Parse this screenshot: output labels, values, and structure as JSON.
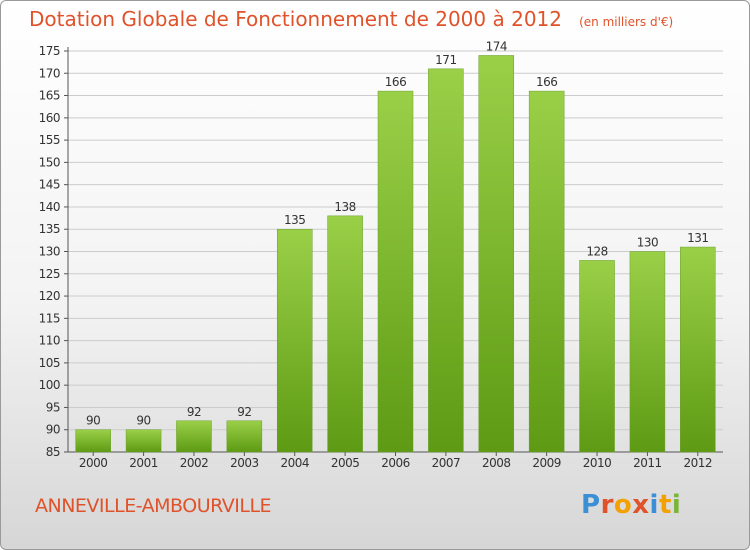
{
  "header": {
    "title": "Dotation Globale de Fonctionnement de 2000 à 2012",
    "unit": "(en milliers d'€)"
  },
  "footer": {
    "commune": "ANNEVILLE-AMBOURVILLE",
    "logo_letters": [
      "P",
      "r",
      "o",
      "x",
      "i",
      "t",
      "i"
    ],
    "logo_colors": [
      "#3a8fd6",
      "#e0522a",
      "#f2a100",
      "#e0522a",
      "#3a8fd6",
      "#f2a100",
      "#7ab53a"
    ]
  },
  "colors": {
    "bar_top": "#9ad048",
    "bar_bottom": "#5e9a14",
    "grid": "#cccccc",
    "text": "#333333",
    "accent": "#e0522a"
  },
  "chart_data": {
    "type": "bar",
    "categories": [
      "2000",
      "2001",
      "2002",
      "2003",
      "2004",
      "2005",
      "2006",
      "2007",
      "2008",
      "2009",
      "2010",
      "2011",
      "2012"
    ],
    "values": [
      90,
      90,
      92,
      92,
      135,
      138,
      166,
      171,
      174,
      166,
      128,
      130,
      131
    ],
    "title": "Dotation Globale de Fonctionnement de 2000 à 2012",
    "subtitle": "(en milliers d'€)",
    "xlabel": "",
    "ylabel": "",
    "ylim": [
      85,
      175
    ],
    "yticks": [
      85,
      90,
      95,
      100,
      105,
      110,
      115,
      120,
      125,
      130,
      135,
      140,
      145,
      150,
      155,
      160,
      165,
      170,
      175
    ],
    "grid": true,
    "legend": "none"
  }
}
